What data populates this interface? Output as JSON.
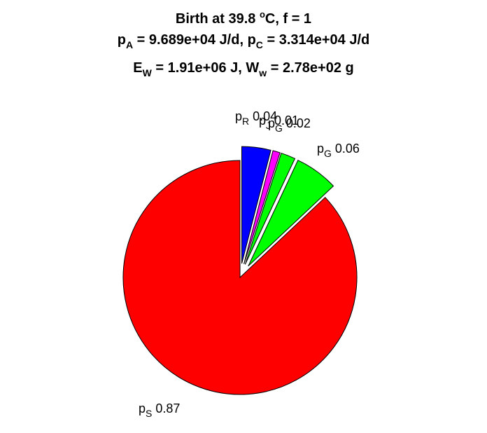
{
  "chart_data": {
    "type": "pie",
    "title": {
      "line1": {
        "prefix": "Birth at 39.8 ",
        "sup": "o",
        "suffix": "C, f = 1"
      },
      "line2": {
        "p_a_sym": "p",
        "p_a_sub": "A",
        "p_a_val": " = 9.689e+04 J/d, ",
        "p_c_sym": "p",
        "p_c_sub": "C",
        "p_c_val": " = 3.314e+04 J/d"
      },
      "line3": {
        "e_sym": "E",
        "e_sub": "W",
        "e_val": " = 1.91e+06 J, ",
        "w_sym": "W",
        "w_sub": "w",
        "w_val": " = 2.78e+02 g"
      }
    },
    "exploded": true,
    "direction": "clockwise",
    "start_angle": "top",
    "slices": [
      {
        "symbol": "p",
        "sub": "R",
        "value": 0.04,
        "value_label": "0.04",
        "color": "#0000ff"
      },
      {
        "symbol": "p",
        "sub": "J",
        "value": 0.01,
        "value_label": "0.01",
        "color": "#ff00ff"
      },
      {
        "symbol": "p",
        "sub": "G",
        "value": 0.02,
        "value_label": "0.02",
        "color": "#00ff00"
      },
      {
        "symbol": "p",
        "sub": "G",
        "value": 0.06,
        "value_label": "0.06",
        "color": "#00ff00"
      },
      {
        "symbol": "p",
        "sub": "S",
        "value": 0.87,
        "value_label": "0.87",
        "color": "#ff0000"
      }
    ]
  }
}
